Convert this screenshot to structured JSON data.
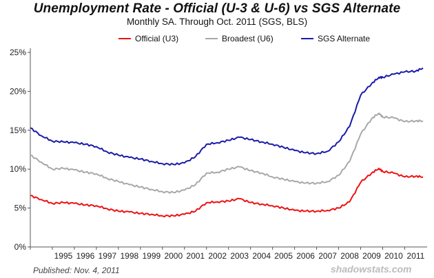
{
  "chart_data": {
    "type": "line",
    "title": "Unemployment Rate - Official (U-3 & U-6) vs SGS Alternate",
    "subtitle": "Monthly SA. Through Oct. 2011  (SGS, BLS)",
    "published": "Published: Nov. 4, 2011",
    "watermark": "shadowstats.com",
    "xlabel": "",
    "ylabel": "",
    "xlim": [
      1994.0,
      2011.83
    ],
    "ylim": [
      0,
      25
    ],
    "x_ticks": [
      1995,
      1996,
      1997,
      1998,
      1999,
      2000,
      2001,
      2002,
      2003,
      2004,
      2005,
      2006,
      2007,
      2008,
      2009,
      2010,
      2011
    ],
    "x_tick_labels": [
      "1995",
      "1996",
      "1997",
      "1998",
      "1999",
      "2000",
      "2001",
      "2002",
      "2003",
      "2004",
      "2005",
      "2006",
      "2007",
      "2008",
      "2009",
      "2010",
      "2011"
    ],
    "y_ticks": [
      0,
      5,
      10,
      15,
      20,
      25
    ],
    "y_tick_labels": [
      "0%",
      "5%",
      "10%",
      "15%",
      "20%",
      "25%"
    ],
    "grid": false,
    "legend_position": "top",
    "series": [
      {
        "name": "Official (U3)",
        "color": "#ee1111",
        "x": [
          1994.0,
          1994.5,
          1995.0,
          1995.5,
          1996.0,
          1996.5,
          1997.0,
          1997.5,
          1998.0,
          1998.5,
          1999.0,
          1999.5,
          2000.0,
          2000.5,
          2001.0,
          2001.5,
          2002.0,
          2002.5,
          2003.0,
          2003.5,
          2004.0,
          2004.5,
          2005.0,
          2005.5,
          2006.0,
          2006.5,
          2007.0,
          2007.5,
          2008.0,
          2008.5,
          2009.0,
          2009.5,
          2009.83,
          2010.0,
          2010.5,
          2011.0,
          2011.5,
          2011.83
        ],
        "values": [
          6.6,
          6.1,
          5.6,
          5.7,
          5.6,
          5.4,
          5.3,
          4.9,
          4.6,
          4.5,
          4.3,
          4.2,
          4.0,
          4.0,
          4.2,
          4.6,
          5.7,
          5.8,
          5.9,
          6.2,
          5.7,
          5.5,
          5.3,
          5.0,
          4.7,
          4.6,
          4.6,
          4.7,
          5.0,
          5.8,
          8.3,
          9.5,
          10.1,
          9.7,
          9.5,
          9.0,
          9.1,
          9.0
        ]
      },
      {
        "name": "Broadest (U6)",
        "color": "#a8a8a8",
        "x": [
          1994.0,
          1994.5,
          1995.0,
          1995.5,
          1996.0,
          1996.5,
          1997.0,
          1997.5,
          1998.0,
          1998.5,
          1999.0,
          1999.5,
          2000.0,
          2000.5,
          2001.0,
          2001.5,
          2002.0,
          2002.5,
          2003.0,
          2003.5,
          2004.0,
          2004.5,
          2005.0,
          2005.5,
          2006.0,
          2006.5,
          2007.0,
          2007.5,
          2008.0,
          2008.5,
          2009.0,
          2009.5,
          2009.83,
          2010.0,
          2010.5,
          2011.0,
          2011.5,
          2011.83
        ],
        "values": [
          11.8,
          10.9,
          10.0,
          10.1,
          9.9,
          9.6,
          9.4,
          8.8,
          8.4,
          8.0,
          7.7,
          7.4,
          7.1,
          7.0,
          7.3,
          8.0,
          9.5,
          9.6,
          10.0,
          10.3,
          9.8,
          9.5,
          9.0,
          8.7,
          8.4,
          8.2,
          8.2,
          8.4,
          9.2,
          11.0,
          14.5,
          16.5,
          17.2,
          16.7,
          16.6,
          16.1,
          16.2,
          16.2
        ]
      },
      {
        "name": "SGS Alternate",
        "color": "#1a1aa8",
        "x": [
          1994.0,
          1994.5,
          1995.0,
          1995.5,
          1996.0,
          1996.5,
          1997.0,
          1997.5,
          1998.0,
          1998.5,
          1999.0,
          1999.5,
          2000.0,
          2000.5,
          2001.0,
          2001.5,
          2002.0,
          2002.5,
          2003.0,
          2003.5,
          2004.0,
          2004.5,
          2005.0,
          2005.5,
          2006.0,
          2006.5,
          2007.0,
          2007.5,
          2008.0,
          2008.5,
          2009.0,
          2009.5,
          2009.83,
          2010.0,
          2010.5,
          2011.0,
          2011.5,
          2011.83
        ],
        "values": [
          15.3,
          14.3,
          13.6,
          13.5,
          13.4,
          13.2,
          12.9,
          12.2,
          11.8,
          11.5,
          11.3,
          11.0,
          10.7,
          10.6,
          10.8,
          11.6,
          13.2,
          13.4,
          13.7,
          14.1,
          13.8,
          13.5,
          13.2,
          12.8,
          12.4,
          12.1,
          12.0,
          12.3,
          13.5,
          15.5,
          19.5,
          21.0,
          21.8,
          21.8,
          22.2,
          22.5,
          22.6,
          23.0
        ]
      }
    ]
  }
}
